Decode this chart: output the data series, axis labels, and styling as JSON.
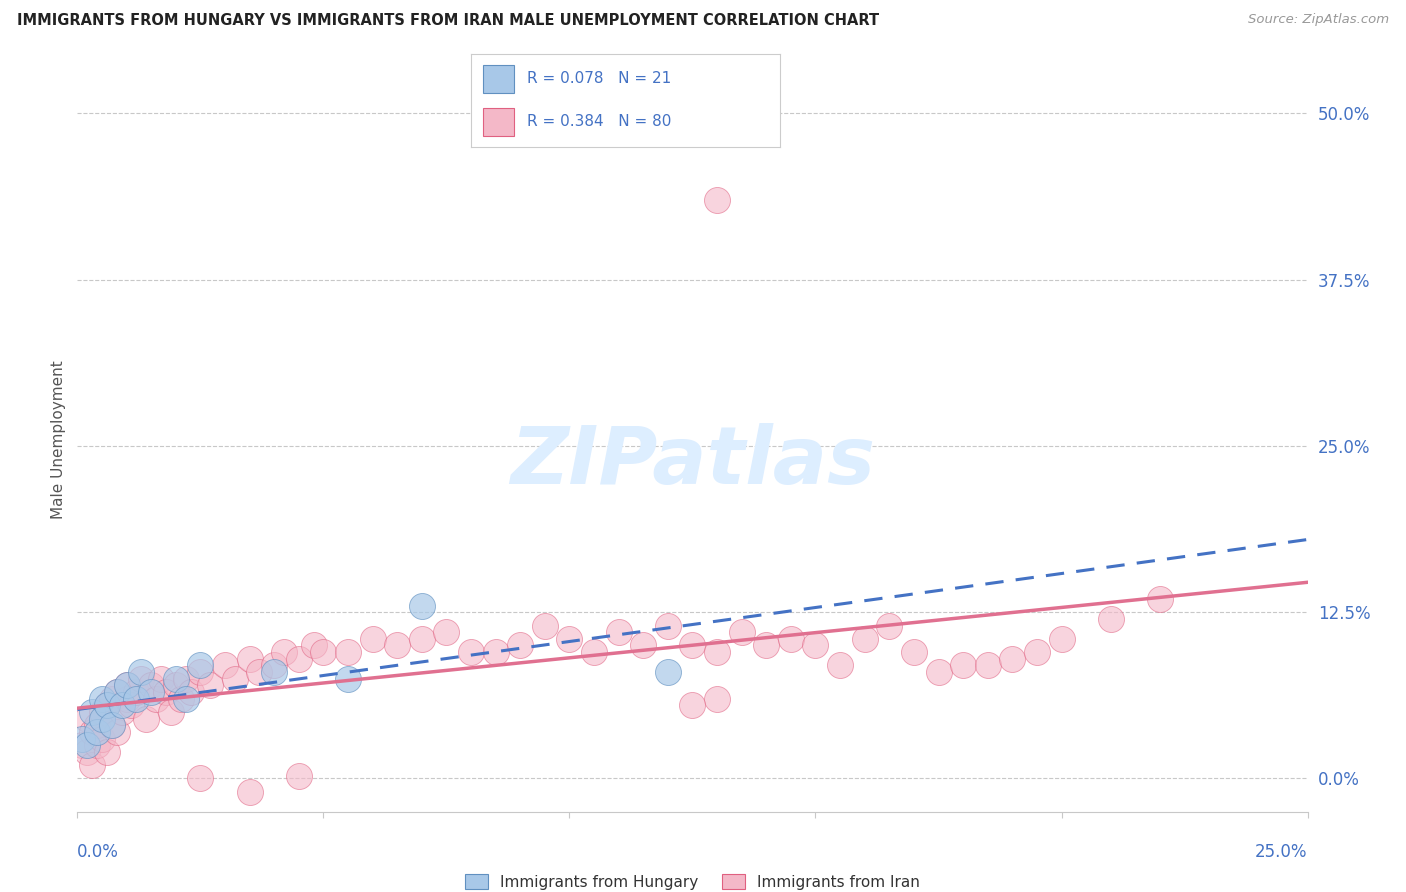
{
  "title": "IMMIGRANTS FROM HUNGARY VS IMMIGRANTS FROM IRAN MALE UNEMPLOYMENT CORRELATION CHART",
  "source": "Source: ZipAtlas.com",
  "ylabel": "Male Unemployment",
  "ytick_labels": [
    "0.0%",
    "12.5%",
    "25.0%",
    "37.5%",
    "50.0%"
  ],
  "ytick_values": [
    0.0,
    0.125,
    0.25,
    0.375,
    0.5
  ],
  "xmin": 0.0,
  "xmax": 0.25,
  "ymin": -0.025,
  "ymax": 0.535,
  "hungary_R": 0.078,
  "hungary_N": 21,
  "iran_R": 0.384,
  "iran_N": 80,
  "hungary_color": "#a8c8e8",
  "iran_color": "#f4b8c8",
  "hungary_edge_color": "#6090c0",
  "iran_edge_color": "#e06080",
  "hungary_line_color": "#4472c4",
  "iran_line_color": "#e07090",
  "legend_label_hungary": "Immigrants from Hungary",
  "legend_label_iran": "Immigrants from Iran",
  "hungary_scatter_x": [
    0.001,
    0.002,
    0.003,
    0.004,
    0.005,
    0.005,
    0.006,
    0.007,
    0.008,
    0.009,
    0.01,
    0.012,
    0.013,
    0.015,
    0.02,
    0.022,
    0.025,
    0.04,
    0.055,
    0.07,
    0.12
  ],
  "hungary_scatter_y": [
    0.03,
    0.025,
    0.05,
    0.035,
    0.06,
    0.045,
    0.055,
    0.04,
    0.065,
    0.055,
    0.07,
    0.06,
    0.08,
    0.065,
    0.075,
    0.06,
    0.085,
    0.08,
    0.075,
    0.13,
    0.08
  ],
  "iran_scatter_x": [
    0.001,
    0.002,
    0.002,
    0.003,
    0.003,
    0.004,
    0.004,
    0.005,
    0.005,
    0.006,
    0.006,
    0.007,
    0.007,
    0.008,
    0.008,
    0.009,
    0.01,
    0.01,
    0.011,
    0.012,
    0.013,
    0.014,
    0.015,
    0.016,
    0.017,
    0.018,
    0.019,
    0.02,
    0.021,
    0.022,
    0.023,
    0.025,
    0.027,
    0.03,
    0.032,
    0.035,
    0.037,
    0.04,
    0.042,
    0.045,
    0.048,
    0.05,
    0.055,
    0.06,
    0.065,
    0.07,
    0.075,
    0.08,
    0.085,
    0.09,
    0.095,
    0.1,
    0.105,
    0.11,
    0.115,
    0.12,
    0.125,
    0.13,
    0.135,
    0.14,
    0.145,
    0.15,
    0.155,
    0.16,
    0.165,
    0.17,
    0.175,
    0.18,
    0.185,
    0.19,
    0.195,
    0.2,
    0.21,
    0.22,
    0.025,
    0.035,
    0.045,
    0.13,
    0.125,
    0.13
  ],
  "iran_scatter_y": [
    0.025,
    0.02,
    0.045,
    0.01,
    0.035,
    0.025,
    0.04,
    0.03,
    0.05,
    0.02,
    0.055,
    0.04,
    0.06,
    0.035,
    0.065,
    0.05,
    0.06,
    0.07,
    0.055,
    0.065,
    0.075,
    0.045,
    0.07,
    0.06,
    0.075,
    0.065,
    0.05,
    0.07,
    0.06,
    0.075,
    0.065,
    0.08,
    0.07,
    0.085,
    0.075,
    0.09,
    0.08,
    0.085,
    0.095,
    0.09,
    0.1,
    0.095,
    0.095,
    0.105,
    0.1,
    0.105,
    0.11,
    0.095,
    0.095,
    0.1,
    0.115,
    0.105,
    0.095,
    0.11,
    0.1,
    0.115,
    0.1,
    0.095,
    0.11,
    0.1,
    0.105,
    0.1,
    0.085,
    0.105,
    0.115,
    0.095,
    0.08,
    0.085,
    0.085,
    0.09,
    0.095,
    0.105,
    0.12,
    0.135,
    0.0,
    -0.01,
    0.002,
    0.06,
    0.055,
    0.435
  ],
  "background_color": "#ffffff",
  "grid_color": "#c8c8c8",
  "title_color": "#222222",
  "right_yaxis_color": "#4472c4",
  "watermark_color": "#ddeeff",
  "xtick_positions": [
    0.0,
    0.05,
    0.1,
    0.15,
    0.2,
    0.25
  ]
}
